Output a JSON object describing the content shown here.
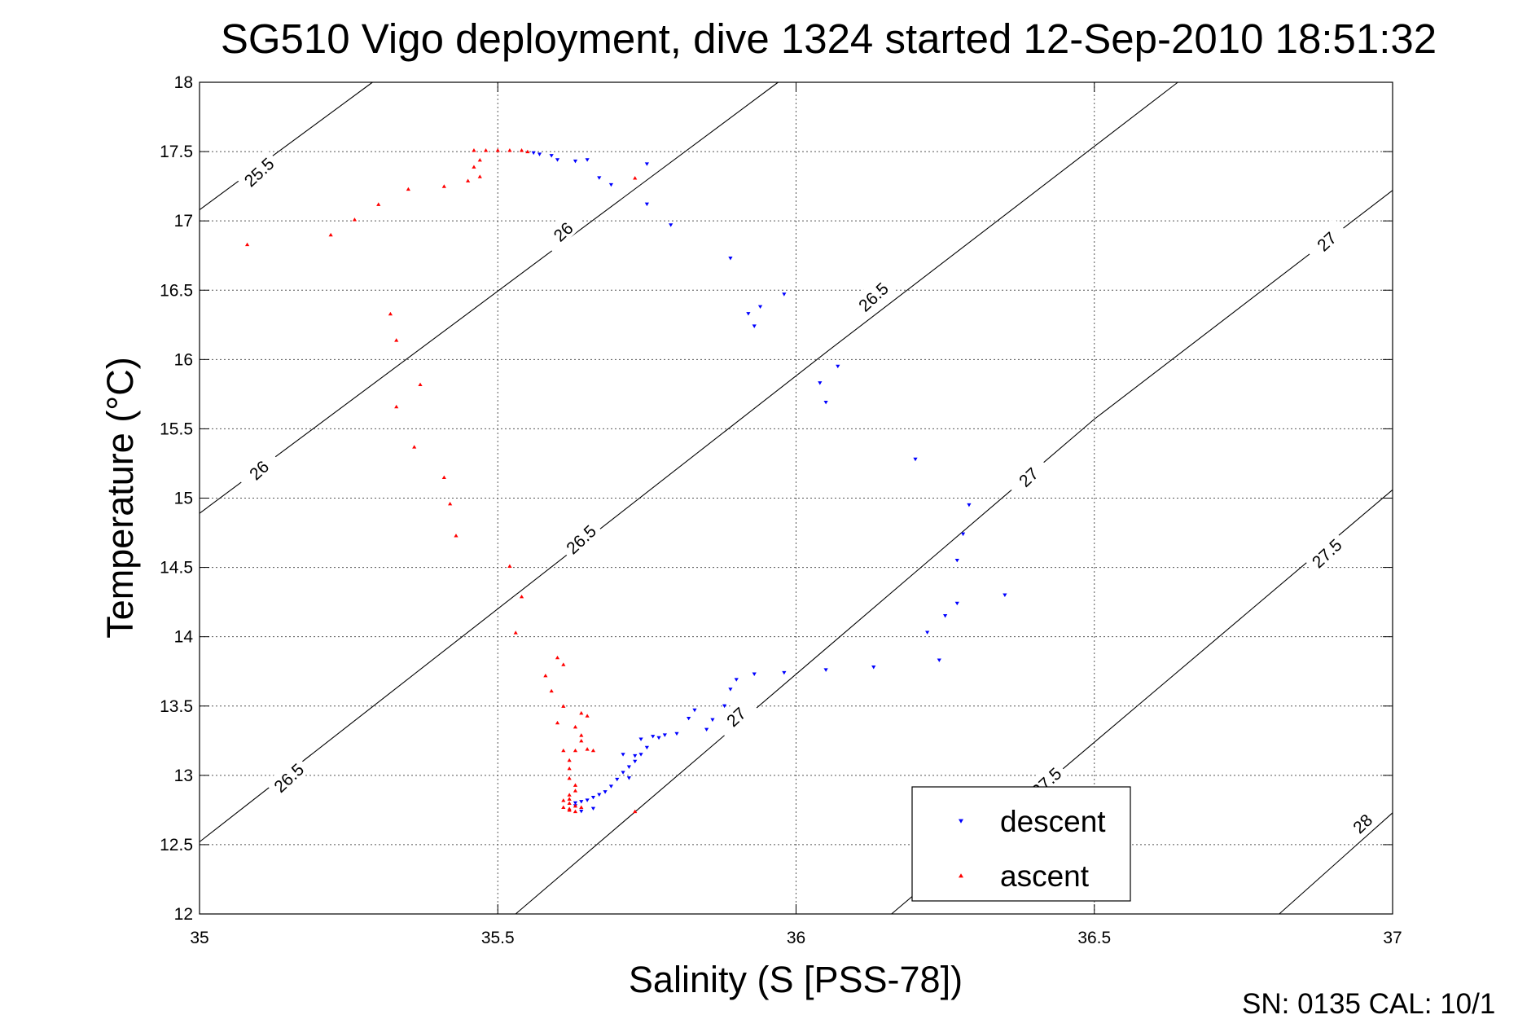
{
  "chart_data": {
    "type": "scatter",
    "title": "SG510 Vigo deployment, dive 1324 started 12-Sep-2010 18:51:32",
    "xlabel": "Salinity (S [PSS-78])",
    "ylabel": "Temperature (°C)",
    "xlim": [
      35,
      37
    ],
    "ylim": [
      12,
      18
    ],
    "x_ticks": [
      "35",
      "35.5",
      "36",
      "36.5",
      "37"
    ],
    "y_ticks": [
      "12",
      "12.5",
      "13",
      "13.5",
      "14",
      "14.5",
      "15",
      "15.5",
      "16",
      "16.5",
      "17",
      "17.5",
      "18"
    ],
    "grid": true,
    "legend_position": "bottom-right",
    "density_contours": [
      {
        "sigma": 25.5,
        "label": "25.5",
        "points": [
          [
            35.0,
            17.08
          ],
          [
            35.29,
            18.0
          ]
        ]
      },
      {
        "sigma": 26.0,
        "label": "26",
        "points": [
          [
            35.0,
            14.89
          ],
          [
            35.97,
            18.0
          ]
        ]
      },
      {
        "sigma": 26.5,
        "label": "26.5",
        "points": [
          [
            35.0,
            12.52
          ],
          [
            36.05,
            16.05
          ],
          [
            36.64,
            18.0
          ]
        ]
      },
      {
        "sigma": 27.0,
        "label": "27",
        "points": [
          [
            35.53,
            12.0
          ],
          [
            36.5,
            15.57
          ],
          [
            37.0,
            17.22
          ]
        ]
      },
      {
        "sigma": 27.5,
        "label": "27.5",
        "points": [
          [
            36.16,
            12.0
          ],
          [
            37.0,
            15.06
          ]
        ]
      },
      {
        "sigma": 28.0,
        "label": "28",
        "points": [
          [
            36.81,
            12.0
          ],
          [
            37.0,
            12.73
          ]
        ]
      }
    ],
    "contour_labels": [
      {
        "text": "25.5",
        "x": 35.1,
        "y": 17.35
      },
      {
        "text": "26",
        "x": 35.61,
        "y": 16.92
      },
      {
        "text": "26",
        "x": 35.1,
        "y": 15.2
      },
      {
        "text": "26.5",
        "x": 36.13,
        "y": 16.45
      },
      {
        "text": "26.5",
        "x": 35.64,
        "y": 14.7
      },
      {
        "text": "26.5",
        "x": 35.15,
        "y": 12.98
      },
      {
        "text": "27",
        "x": 36.39,
        "y": 15.15
      },
      {
        "text": "27",
        "x": 35.9,
        "y": 13.42
      },
      {
        "text": "27",
        "x": 36.89,
        "y": 16.85
      },
      {
        "text": "27.5",
        "x": 36.89,
        "y": 14.6
      },
      {
        "text": "27.5",
        "x": 36.42,
        "y": 12.95
      },
      {
        "text": "28",
        "x": 36.95,
        "y": 12.65
      }
    ],
    "series": [
      {
        "name": "descent",
        "color": "#0000ff",
        "marker": "triangle-down",
        "points": [
          [
            35.56,
            17.49
          ],
          [
            35.57,
            17.48
          ],
          [
            35.59,
            17.47
          ],
          [
            35.6,
            17.44
          ],
          [
            35.63,
            17.43
          ],
          [
            35.65,
            17.44
          ],
          [
            35.67,
            17.31
          ],
          [
            35.69,
            17.26
          ],
          [
            35.75,
            17.41
          ],
          [
            35.75,
            17.12
          ],
          [
            35.79,
            16.97
          ],
          [
            35.89,
            16.73
          ],
          [
            35.92,
            16.33
          ],
          [
            35.94,
            16.38
          ],
          [
            35.93,
            16.24
          ],
          [
            35.98,
            16.47
          ],
          [
            36.04,
            15.83
          ],
          [
            36.07,
            15.95
          ],
          [
            36.05,
            15.69
          ],
          [
            36.2,
            15.28
          ],
          [
            36.29,
            14.95
          ],
          [
            36.28,
            14.74
          ],
          [
            36.27,
            14.55
          ],
          [
            36.27,
            14.24
          ],
          [
            36.25,
            14.15
          ],
          [
            36.35,
            14.3
          ],
          [
            36.22,
            14.03
          ],
          [
            36.24,
            13.83
          ],
          [
            36.13,
            13.78
          ],
          [
            36.05,
            13.76
          ],
          [
            35.98,
            13.74
          ],
          [
            35.93,
            13.73
          ],
          [
            35.9,
            13.69
          ],
          [
            35.89,
            13.62
          ],
          [
            35.88,
            13.5
          ],
          [
            35.86,
            13.4
          ],
          [
            35.85,
            13.33
          ],
          [
            35.83,
            13.47
          ],
          [
            35.82,
            13.41
          ],
          [
            35.8,
            13.3
          ],
          [
            35.78,
            13.29
          ],
          [
            35.77,
            13.27
          ],
          [
            35.76,
            13.28
          ],
          [
            35.75,
            13.2
          ],
          [
            35.74,
            13.15
          ],
          [
            35.73,
            13.14
          ],
          [
            35.72,
            13.06
          ],
          [
            35.71,
            13.02
          ],
          [
            35.7,
            12.97
          ],
          [
            35.69,
            12.92
          ],
          [
            35.68,
            12.88
          ],
          [
            35.67,
            12.86
          ],
          [
            35.66,
            12.84
          ],
          [
            35.65,
            12.82
          ],
          [
            35.64,
            12.81
          ],
          [
            35.63,
            12.8
          ],
          [
            35.63,
            12.78
          ],
          [
            35.64,
            12.74
          ],
          [
            35.66,
            12.76
          ],
          [
            35.71,
            13.15
          ],
          [
            35.73,
            13.1
          ],
          [
            35.74,
            13.26
          ],
          [
            35.72,
            12.98
          ]
        ]
      },
      {
        "name": "ascent",
        "color": "#ff0000",
        "marker": "triangle-up",
        "points": [
          [
            35.08,
            16.83
          ],
          [
            35.22,
            16.9
          ],
          [
            35.26,
            17.01
          ],
          [
            35.3,
            17.12
          ],
          [
            35.35,
            17.23
          ],
          [
            35.41,
            17.25
          ],
          [
            35.45,
            17.29
          ],
          [
            35.46,
            17.39
          ],
          [
            35.47,
            17.44
          ],
          [
            35.47,
            17.32
          ],
          [
            35.46,
            17.51
          ],
          [
            35.48,
            17.51
          ],
          [
            35.5,
            17.51
          ],
          [
            35.52,
            17.51
          ],
          [
            35.54,
            17.51
          ],
          [
            35.55,
            17.5
          ],
          [
            35.73,
            17.31
          ],
          [
            35.32,
            16.33
          ],
          [
            35.33,
            16.14
          ],
          [
            35.37,
            15.82
          ],
          [
            35.33,
            15.66
          ],
          [
            35.36,
            15.37
          ],
          [
            35.41,
            15.15
          ],
          [
            35.42,
            14.96
          ],
          [
            35.43,
            14.73
          ],
          [
            35.52,
            14.51
          ],
          [
            35.54,
            14.29
          ],
          [
            35.53,
            14.03
          ],
          [
            35.6,
            13.85
          ],
          [
            35.61,
            13.8
          ],
          [
            35.58,
            13.72
          ],
          [
            35.59,
            13.61
          ],
          [
            35.61,
            13.5
          ],
          [
            35.64,
            13.45
          ],
          [
            35.65,
            13.43
          ],
          [
            35.6,
            13.38
          ],
          [
            35.63,
            13.35
          ],
          [
            35.64,
            13.29
          ],
          [
            35.64,
            13.25
          ],
          [
            35.63,
            13.18
          ],
          [
            35.65,
            13.19
          ],
          [
            35.66,
            13.18
          ],
          [
            35.61,
            13.18
          ],
          [
            35.62,
            13.11
          ],
          [
            35.62,
            13.05
          ],
          [
            35.62,
            12.98
          ],
          [
            35.63,
            12.93
          ],
          [
            35.63,
            12.89
          ],
          [
            35.62,
            12.86
          ],
          [
            35.62,
            12.83
          ],
          [
            35.61,
            12.82
          ],
          [
            35.62,
            12.8
          ],
          [
            35.63,
            12.78
          ],
          [
            35.62,
            12.76
          ],
          [
            35.62,
            12.75
          ],
          [
            35.63,
            12.74
          ],
          [
            35.61,
            12.77
          ],
          [
            35.64,
            12.77
          ],
          [
            35.73,
            12.74
          ]
        ]
      }
    ]
  },
  "footer": "SN: 0135  CAL: 10/1"
}
